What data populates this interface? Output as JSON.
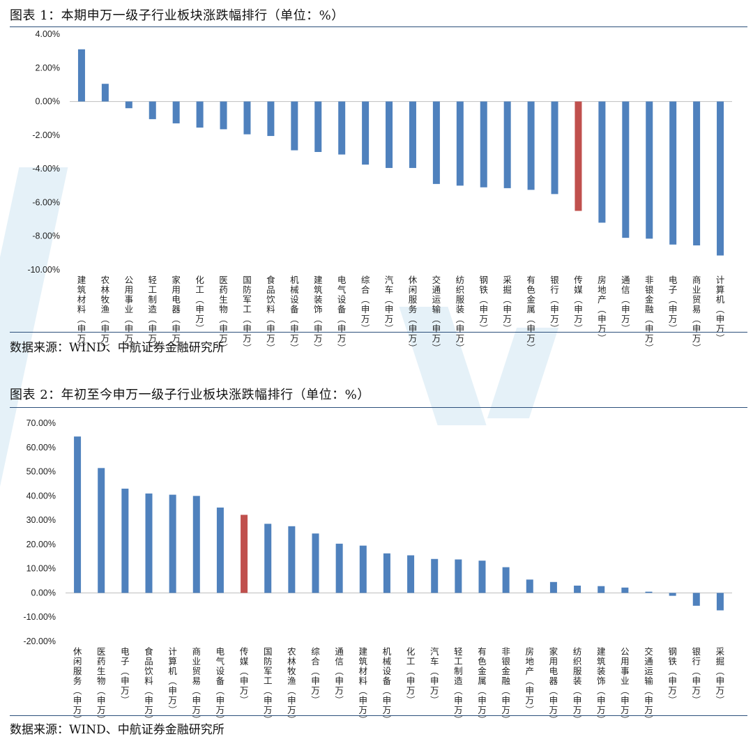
{
  "colors": {
    "bar": "#4f81bd",
    "highlight": "#c0504d",
    "rule": "#2b4f7a",
    "watermark": "#cfe5f2"
  },
  "figures": [
    {
      "title": "图表 1：本期申万一级子行业板块涨跌幅排行（单位：%）",
      "source": "数据来源：WIND、中航证券金融研究所",
      "chart_data": {
        "type": "bar",
        "title": "图表 1：本期申万一级子行业板块涨跌幅排行（单位：%）",
        "xlabel": "",
        "ylabel": "",
        "ylim": [
          -10,
          4
        ],
        "yticks": [
          4,
          2,
          0,
          -2,
          -4,
          -6,
          -8,
          -10
        ],
        "ytick_labels": [
          "4.00%",
          "2.00%",
          "0.00%",
          "-2.00%",
          "-4.00%",
          "-6.00%",
          "-8.00%",
          "-10.00%"
        ],
        "grid": false,
        "highlight": "传媒(申万)",
        "categories": [
          "建筑材料(申万)",
          "农林牧渔(申万)",
          "公用事业(申万)",
          "轻工制造(申万)",
          "家用电器(申万)",
          "化工(申万)",
          "医药生物(申万)",
          "国防军工(申万)",
          "食品饮料(申万)",
          "机械设备(申万)",
          "建筑装饰(申万)",
          "电气设备(申万)",
          "综合(申万)",
          "汽车(申万)",
          "休闲服务(申万)",
          "交通运输(申万)",
          "纺织服装(申万)",
          "钢铁(申万)",
          "采掘(申万)",
          "有色金属(申万)",
          "银行(申万)",
          "传媒(申万)",
          "房地产(申万)",
          "通信(申万)",
          "非银金融(申万)",
          "电子(申万)",
          "商业贸易(申万)",
          "计算机(申万)"
        ],
        "values": [
          3.1,
          1.05,
          -0.4,
          -1.05,
          -1.3,
          -1.55,
          -1.65,
          -1.95,
          -2.05,
          -2.9,
          -3.0,
          -3.15,
          -3.75,
          -3.95,
          -3.95,
          -4.9,
          -5.0,
          -5.1,
          -5.15,
          -5.25,
          -5.5,
          -6.5,
          -7.2,
          -8.1,
          -8.15,
          -8.5,
          -8.55,
          -9.15
        ]
      }
    },
    {
      "title": "图表 2：年初至今申万一级子行业板块涨跌幅排行（单位：%）",
      "source": "数据来源：WIND、中航证券金融研究所",
      "chart_data": {
        "type": "bar",
        "title": "图表 2：年初至今申万一级子行业板块涨跌幅排行（单位：%）",
        "xlabel": "",
        "ylabel": "",
        "ylim": [
          -20,
          70
        ],
        "yticks": [
          70,
          60,
          50,
          40,
          30,
          20,
          10,
          0,
          -10,
          -20
        ],
        "ytick_labels": [
          "70.00%",
          "60.00%",
          "50.00%",
          "40.00%",
          "30.00%",
          "20.00%",
          "10.00%",
          "0.00%",
          "-10.00%",
          "-20.00%"
        ],
        "grid": false,
        "highlight": "传媒(申万)",
        "categories": [
          "休闲服务(申万)",
          "医药生物(申万)",
          "电子(申万)",
          "食品饮料(申万)",
          "计算机(申万)",
          "商业贸易(申万)",
          "电气设备(申万)",
          "传媒(申万)",
          "国防军工(申万)",
          "农林牧渔(申万)",
          "综合(申万)",
          "通信(申万)",
          "建筑材料(申万)",
          "机械设备(申万)",
          "化工(申万)",
          "汽车(申万)",
          "轻工制造(申万)",
          "有色金属(申万)",
          "非银金融(申万)",
          "房地产(申万)",
          "家用电器(申万)",
          "纺织服装(申万)",
          "建筑装饰(申万)",
          "公用事业(申万)",
          "交通运输(申万)",
          "钢铁(申万)",
          "银行(申万)",
          "采掘(申万)"
        ],
        "values": [
          64.5,
          51.5,
          43.0,
          41.0,
          40.5,
          40.0,
          35.2,
          32.2,
          28.5,
          27.5,
          24.5,
          20.3,
          19.5,
          16.3,
          15.5,
          14.0,
          13.8,
          13.3,
          10.6,
          5.5,
          4.5,
          3.0,
          2.8,
          2.2,
          0.5,
          -1.2,
          -5.3,
          -7.2
        ]
      }
    }
  ]
}
